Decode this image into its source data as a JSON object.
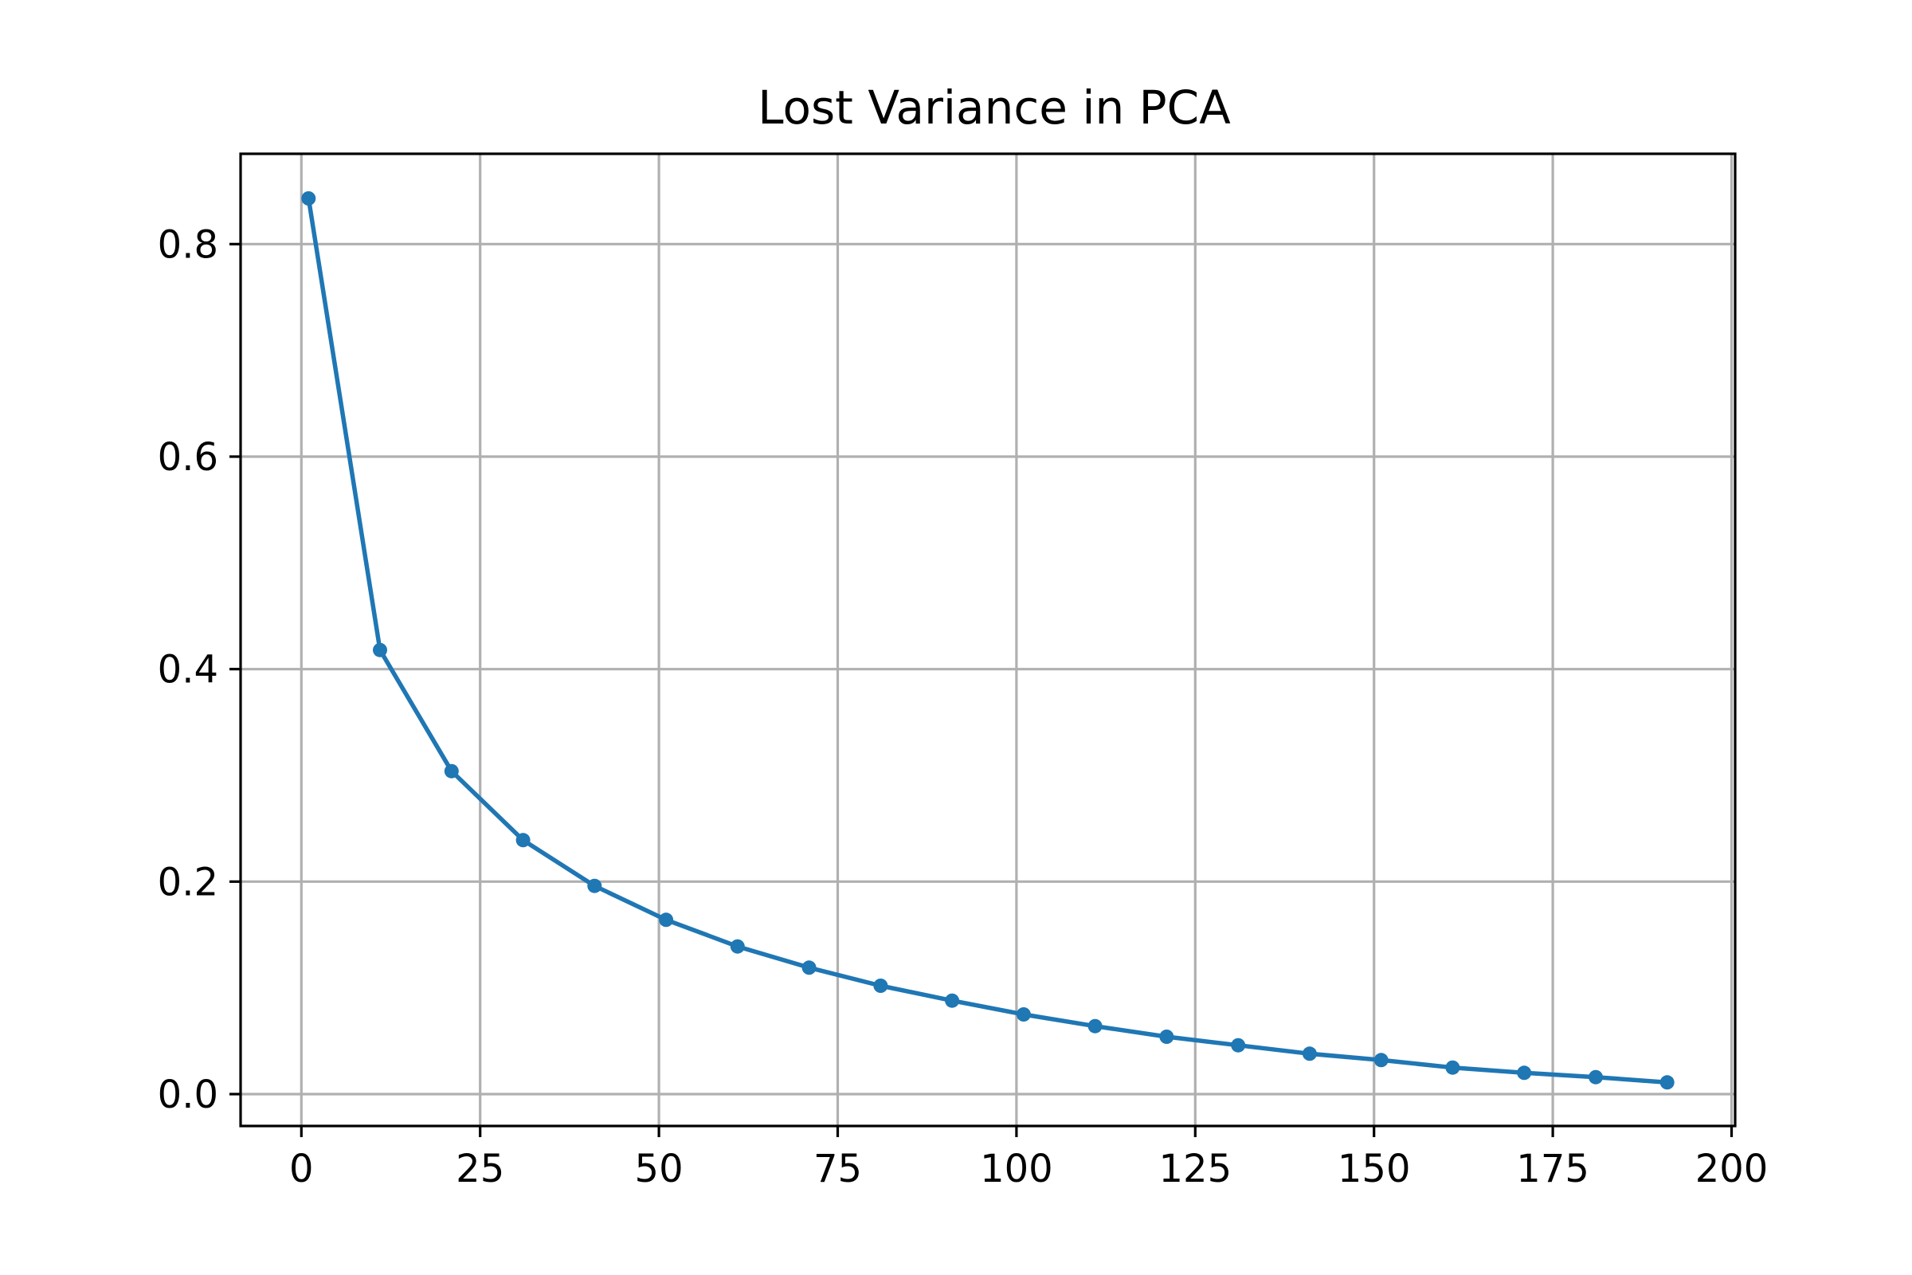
{
  "chart_data": {
    "type": "line",
    "title": "Lost Variance in PCA",
    "xlabel": "",
    "ylabel": "",
    "xlim": [
      -8.5,
      200.5
    ],
    "ylim": [
      -0.03,
      0.885
    ],
    "grid": true,
    "xticks": [
      0,
      25,
      50,
      75,
      100,
      125,
      150,
      175,
      200
    ],
    "xtick_labels": [
      "0",
      "25",
      "50",
      "75",
      "100",
      "125",
      "150",
      "175",
      "200"
    ],
    "yticks": [
      0.0,
      0.2,
      0.4,
      0.6,
      0.8
    ],
    "ytick_labels": [
      "0.0",
      "0.2",
      "0.4",
      "0.6",
      "0.8"
    ],
    "series": [
      {
        "color": "#1f77b4",
        "marker": "circle",
        "x": [
          1,
          11,
          21,
          31,
          41,
          51,
          61,
          71,
          81,
          91,
          101,
          111,
          121,
          131,
          141,
          151,
          161,
          171,
          181,
          191
        ],
        "y": [
          0.843,
          0.418,
          0.304,
          0.239,
          0.196,
          0.164,
          0.139,
          0.119,
          0.102,
          0.088,
          0.075,
          0.064,
          0.054,
          0.046,
          0.038,
          0.032,
          0.025,
          0.02,
          0.016,
          0.011
        ]
      }
    ]
  }
}
